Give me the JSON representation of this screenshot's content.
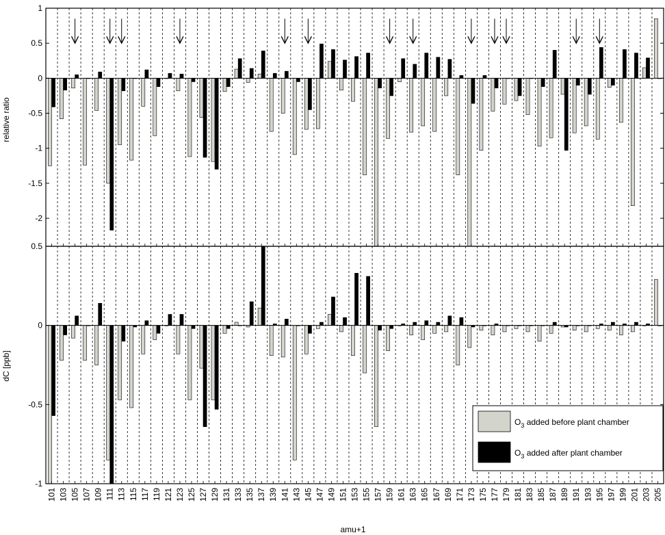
{
  "chart_data": [
    {
      "type": "bar",
      "panel": "top",
      "ylabel": "relative ratio",
      "ylim": [
        -2.4,
        1
      ],
      "yticks": [
        -2,
        -1.5,
        -1,
        -0.5,
        0,
        0.5,
        1
      ],
      "ytick_labels": [
        "-2",
        "-1.5",
        "-1",
        "-0.5",
        "0",
        "0.5",
        "1"
      ],
      "grid_x": "dashed",
      "arrows_at": [
        105,
        111,
        113,
        123,
        141,
        145,
        159,
        163,
        173,
        177,
        179,
        191,
        195
      ],
      "series": [
        {
          "name": "O3 added before plant chamber",
          "color": "#d3d5cd",
          "values": [
            -1.25,
            -0.58,
            -0.14,
            -1.24,
            -0.46,
            -1.5,
            -0.95,
            -1.17,
            -0.4,
            -0.82,
            0.0,
            -0.18,
            -1.12,
            -0.56,
            -1.19,
            -0.19,
            0.13,
            -0.06,
            0.06,
            -0.76,
            -0.5,
            -1.09,
            -0.73,
            -0.72,
            0.24,
            -0.17,
            -0.33,
            -1.38,
            -2.4,
            -0.86,
            -0.05,
            -0.77,
            -0.68,
            -0.76,
            -0.25,
            -1.38,
            -2.4,
            -1.03,
            -0.47,
            -0.37,
            -0.32,
            -0.52,
            -0.97,
            -0.85,
            -0.23,
            -0.78,
            -0.68,
            -0.87,
            -0.13,
            -0.63,
            -1.82,
            0.15,
            0.85
          ]
        },
        {
          "name": "O3 added after plant chamber",
          "color": "#000000",
          "values": [
            -0.41,
            -0.17,
            0.05,
            0.0,
            0.09,
            -2.17,
            -0.18,
            0.0,
            0.12,
            -0.12,
            0.07,
            0.06,
            -0.05,
            -1.13,
            -1.3,
            -0.12,
            0.28,
            0.14,
            0.39,
            0.07,
            0.1,
            -0.05,
            -0.45,
            0.49,
            0.41,
            0.26,
            0.31,
            0.36,
            -0.14,
            -0.25,
            0.28,
            0.2,
            0.36,
            0.3,
            0.27,
            0.04,
            -0.36,
            0.04,
            -0.14,
            0.0,
            -0.25,
            0.0,
            -0.12,
            0.4,
            -1.03,
            -0.1,
            -0.23,
            0.44,
            -0.1,
            0.41,
            0.36,
            0.29,
            0.0
          ]
        }
      ]
    },
    {
      "type": "bar",
      "panel": "bottom",
      "xlabel": "amu+1",
      "ylabel": "dC [ppb]",
      "ylim": [
        -1,
        0.5
      ],
      "yticks": [
        -1,
        -0.5,
        0,
        0.5
      ],
      "ytick_labels": [
        "-1",
        "-0.5",
        "0",
        "0.5"
      ],
      "grid_x": "dashed",
      "categories": [
        "101",
        "103",
        "105",
        "107",
        "109",
        "111",
        "113",
        "115",
        "117",
        "119",
        "121",
        "123",
        "125",
        "127",
        "129",
        "131",
        "133",
        "135",
        "137",
        "139",
        "141",
        "143",
        "145",
        "147",
        "149",
        "151",
        "153",
        "155",
        "157",
        "159",
        "161",
        "163",
        "165",
        "167",
        "169",
        "171",
        "173",
        "175",
        "177",
        "179",
        "181",
        "183",
        "185",
        "187",
        "189",
        "191",
        "193",
        "195",
        "197",
        "199",
        "201",
        "203",
        "205"
      ],
      "series": [
        {
          "name": "O3 added before plant chamber",
          "color": "#d3d5cd",
          "values": [
            -1.0,
            -0.22,
            -0.08,
            -0.22,
            -0.25,
            -0.85,
            -0.47,
            -0.52,
            -0.18,
            -0.09,
            0.0,
            -0.18,
            -0.47,
            -0.27,
            -0.47,
            -0.05,
            0.02,
            -0.01,
            0.11,
            -0.19,
            -0.2,
            -0.85,
            -0.18,
            -0.02,
            0.07,
            -0.04,
            -0.19,
            -0.3,
            -0.64,
            -0.16,
            0.0,
            -0.06,
            -0.09,
            -0.05,
            -0.04,
            -0.25,
            -0.14,
            -0.03,
            -0.06,
            -0.04,
            -0.02,
            -0.04,
            -0.1,
            -0.05,
            -0.01,
            -0.03,
            -0.04,
            -0.02,
            -0.03,
            -0.06,
            -0.04,
            0.0,
            0.29
          ]
        },
        {
          "name": "O3 added after plant chamber",
          "color": "#000000",
          "values": [
            -0.57,
            -0.06,
            0.06,
            0.0,
            0.14,
            -1.0,
            -0.1,
            -0.01,
            0.03,
            -0.05,
            0.07,
            0.07,
            -0.02,
            -0.64,
            -0.53,
            -0.02,
            0.0,
            0.15,
            0.5,
            0.01,
            0.04,
            0.0,
            -0.05,
            0.02,
            0.18,
            0.05,
            0.33,
            0.31,
            -0.03,
            -0.02,
            0.01,
            0.02,
            0.03,
            0.02,
            0.06,
            0.05,
            -0.01,
            0.0,
            0.01,
            0.0,
            0.0,
            0.0,
            0.0,
            0.02,
            -0.01,
            0.0,
            0.0,
            0.01,
            0.02,
            0.01,
            0.02,
            0.01,
            0.0
          ]
        }
      ]
    }
  ],
  "legend": {
    "placement": "bottom-right",
    "items": [
      {
        "label_main": "O",
        "label_sub": "3",
        "label_rest": " added before plant chamber",
        "color": "#d3d5cd"
      },
      {
        "label_main": "O",
        "label_sub": "3",
        "label_rest": " added after plant chamber",
        "color": "#000000"
      }
    ]
  }
}
